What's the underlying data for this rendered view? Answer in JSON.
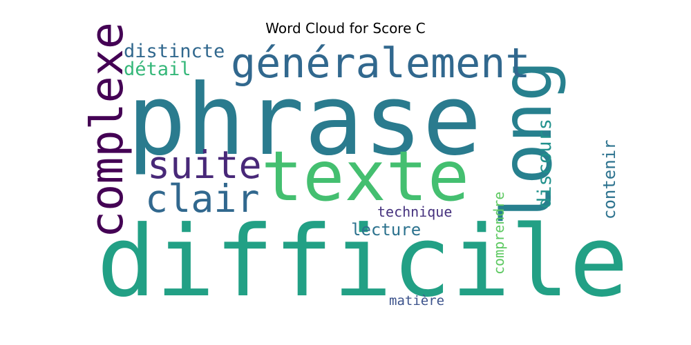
{
  "chart_data": {
    "type": "wordcloud",
    "title": "Word Cloud for Score C",
    "background": "#ffffff",
    "words": [
      {
        "text": "phrase",
        "weight": 1.0,
        "color": "#2a7b8e",
        "orientation": "horizontal"
      },
      {
        "text": "difficile",
        "weight": 0.95,
        "color": "#22a085",
        "orientation": "horizontal"
      },
      {
        "text": "texte",
        "weight": 0.7,
        "color": "#44bf70",
        "orientation": "horizontal"
      },
      {
        "text": "long",
        "weight": 0.7,
        "color": "#27808e",
        "orientation": "vertical"
      },
      {
        "text": "complexe",
        "weight": 0.5,
        "color": "#440154",
        "orientation": "vertical"
      },
      {
        "text": "généralement",
        "weight": 0.45,
        "color": "#31688e",
        "orientation": "horizontal"
      },
      {
        "text": "suite",
        "weight": 0.4,
        "color": "#482878",
        "orientation": "horizontal"
      },
      {
        "text": "clair",
        "weight": 0.4,
        "color": "#31688e",
        "orientation": "horizontal"
      },
      {
        "text": "distincte",
        "weight": 0.2,
        "color": "#31688e",
        "orientation": "horizontal"
      },
      {
        "text": "détail",
        "weight": 0.2,
        "color": "#35b779",
        "orientation": "horizontal"
      },
      {
        "text": "discours",
        "weight": 0.2,
        "color": "#21918c",
        "orientation": "vertical"
      },
      {
        "text": "contenir",
        "weight": 0.18,
        "color": "#2c728e",
        "orientation": "vertical"
      },
      {
        "text": "lecture",
        "weight": 0.18,
        "color": "#2c728e",
        "orientation": "horizontal"
      },
      {
        "text": "technique",
        "weight": 0.14,
        "color": "#46327e",
        "orientation": "horizontal"
      },
      {
        "text": "comprendre",
        "weight": 0.14,
        "color": "#5ec962",
        "orientation": "vertical"
      },
      {
        "text": "matière",
        "weight": 0.13,
        "color": "#3b528b",
        "orientation": "horizontal"
      }
    ]
  }
}
